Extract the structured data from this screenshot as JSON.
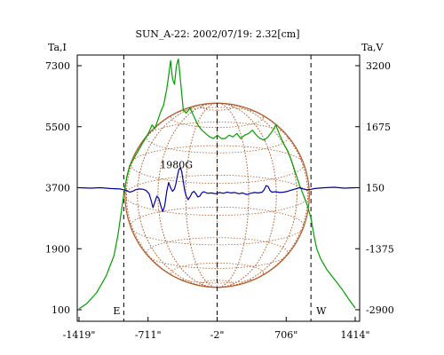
{
  "chart_data": {
    "type": "line",
    "title": "SUN_A-22: 2002/07/19: 2.32[cm]",
    "y_left_label": "Ta,I",
    "y_right_label": "Ta,V",
    "x_ticks": [
      "-1419\"",
      "-711\"",
      "-2\"",
      "706\"",
      "1414\""
    ],
    "x_tick_values": [
      -1419,
      -711,
      -2,
      706,
      1414
    ],
    "y_left_ticks": [
      "7300",
      "5500",
      "3700",
      "1900",
      "100"
    ],
    "y_left_tick_values": [
      7300,
      5500,
      3700,
      1900,
      100
    ],
    "y_right_ticks": [
      "3200",
      "1675",
      "150",
      "-1375",
      "-2900"
    ],
    "y_right_tick_values": [
      3200,
      1675,
      150,
      -1375,
      -2900
    ],
    "xlim": [
      -1419,
      1414
    ],
    "ylim_left": [
      100,
      7300
    ],
    "ylim_right": [
      -2900,
      3200
    ],
    "limb_markers": [
      {
        "x": -960,
        "label": "E"
      },
      {
        "x": -2,
        "label": ""
      },
      {
        "x": 960,
        "label": "W"
      }
    ],
    "annotations": [
      {
        "text": "1980G",
        "x": -420,
        "y_right": 640
      }
    ],
    "disk": {
      "center_x": -2,
      "radius_arcsec": 945,
      "color": "#b05a2a"
    },
    "series": [
      {
        "color": "#00a000",
        "axis": "left",
        "points": [
          [
            -1419,
            130
          ],
          [
            -1340,
            280
          ],
          [
            -1240,
            600
          ],
          [
            -1140,
            1100
          ],
          [
            -1060,
            1700
          ],
          [
            -1020,
            2300
          ],
          [
            -990,
            2900
          ],
          [
            -960,
            3500
          ],
          [
            -930,
            4000
          ],
          [
            -900,
            4350
          ],
          [
            -860,
            4550
          ],
          [
            -820,
            4750
          ],
          [
            -780,
            4950
          ],
          [
            -740,
            5150
          ],
          [
            -700,
            5350
          ],
          [
            -670,
            5550
          ],
          [
            -640,
            5450
          ],
          [
            -610,
            5700
          ],
          [
            -580,
            5950
          ],
          [
            -550,
            6150
          ],
          [
            -520,
            6600
          ],
          [
            -500,
            7000
          ],
          [
            -480,
            7450
          ],
          [
            -460,
            6900
          ],
          [
            -440,
            6750
          ],
          [
            -420,
            7300
          ],
          [
            -400,
            7500
          ],
          [
            -380,
            6900
          ],
          [
            -350,
            6000
          ],
          [
            -320,
            5900
          ],
          [
            -280,
            6050
          ],
          [
            -240,
            5800
          ],
          [
            -200,
            5550
          ],
          [
            -160,
            5400
          ],
          [
            -120,
            5300
          ],
          [
            -80,
            5200
          ],
          [
            -40,
            5150
          ],
          [
            0,
            5250
          ],
          [
            40,
            5150
          ],
          [
            80,
            5150
          ],
          [
            120,
            5250
          ],
          [
            160,
            5200
          ],
          [
            200,
            5300
          ],
          [
            240,
            5150
          ],
          [
            280,
            5250
          ],
          [
            320,
            5300
          ],
          [
            360,
            5400
          ],
          [
            400,
            5250
          ],
          [
            440,
            5150
          ],
          [
            480,
            5100
          ],
          [
            520,
            5200
          ],
          [
            560,
            5350
          ],
          [
            600,
            5550
          ],
          [
            640,
            5250
          ],
          [
            680,
            5000
          ],
          [
            720,
            4800
          ],
          [
            760,
            4500
          ],
          [
            800,
            4150
          ],
          [
            840,
            3800
          ],
          [
            880,
            3500
          ],
          [
            920,
            3200
          ],
          [
            960,
            2800
          ],
          [
            990,
            2300
          ],
          [
            1020,
            1900
          ],
          [
            1060,
            1600
          ],
          [
            1120,
            1300
          ],
          [
            1200,
            1000
          ],
          [
            1280,
            700
          ],
          [
            1350,
            400
          ],
          [
            1414,
            150
          ]
        ]
      },
      {
        "color": "#0000a0",
        "axis": "right",
        "points": [
          [
            -1419,
            150
          ],
          [
            -1300,
            140
          ],
          [
            -1200,
            150
          ],
          [
            -1100,
            130
          ],
          [
            -1000,
            120
          ],
          [
            -960,
            100
          ],
          [
            -930,
            80
          ],
          [
            -900,
            40
          ],
          [
            -870,
            60
          ],
          [
            -840,
            100
          ],
          [
            -800,
            120
          ],
          [
            -760,
            110
          ],
          [
            -730,
            80
          ],
          [
            -700,
            0
          ],
          [
            -680,
            -160
          ],
          [
            -660,
            -350
          ],
          [
            -640,
            -200
          ],
          [
            -620,
            -60
          ],
          [
            -600,
            -120
          ],
          [
            -580,
            -300
          ],
          [
            -560,
            -450
          ],
          [
            -540,
            -300
          ],
          [
            -520,
            50
          ],
          [
            -500,
            280
          ],
          [
            -480,
            150
          ],
          [
            -460,
            60
          ],
          [
            -440,
            120
          ],
          [
            -425,
            250
          ],
          [
            -410,
            450
          ],
          [
            -395,
            600
          ],
          [
            -380,
            650
          ],
          [
            -365,
            550
          ],
          [
            -350,
            300
          ],
          [
            -335,
            80
          ],
          [
            -320,
            -50
          ],
          [
            -300,
            -150
          ],
          [
            -280,
            -80
          ],
          [
            -260,
            20
          ],
          [
            -240,
            60
          ],
          [
            -220,
            0
          ],
          [
            -200,
            -80
          ],
          [
            -180,
            -60
          ],
          [
            -160,
            20
          ],
          [
            -140,
            50
          ],
          [
            -100,
            10
          ],
          [
            -60,
            20
          ],
          [
            -20,
            0
          ],
          [
            20,
            30
          ],
          [
            60,
            10
          ],
          [
            100,
            40
          ],
          [
            140,
            20
          ],
          [
            180,
            30
          ],
          [
            220,
            0
          ],
          [
            260,
            20
          ],
          [
            300,
            -20
          ],
          [
            340,
            10
          ],
          [
            380,
            30
          ],
          [
            420,
            20
          ],
          [
            460,
            40
          ],
          [
            480,
            100
          ],
          [
            500,
            200
          ],
          [
            520,
            180
          ],
          [
            540,
            80
          ],
          [
            560,
            40
          ],
          [
            600,
            50
          ],
          [
            640,
            30
          ],
          [
            680,
            40
          ],
          [
            720,
            60
          ],
          [
            760,
            90
          ],
          [
            800,
            120
          ],
          [
            840,
            150
          ],
          [
            880,
            120
          ],
          [
            920,
            100
          ],
          [
            960,
            110
          ],
          [
            1000,
            130
          ],
          [
            1100,
            150
          ],
          [
            1200,
            160
          ],
          [
            1300,
            140
          ],
          [
            1414,
            150
          ]
        ]
      }
    ]
  }
}
